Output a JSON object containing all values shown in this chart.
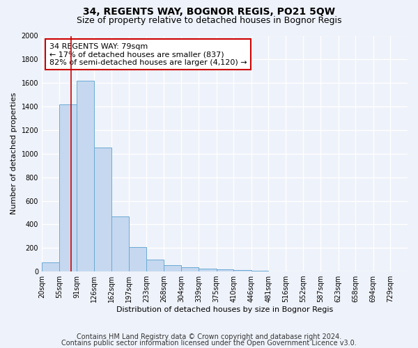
{
  "title1": "34, REGENTS WAY, BOGNOR REGIS, PO21 5QW",
  "title2": "Size of property relative to detached houses in Bognor Regis",
  "xlabel": "Distribution of detached houses by size in Bognor Regis",
  "ylabel": "Number of detached properties",
  "footnote1": "Contains HM Land Registry data © Crown copyright and database right 2024.",
  "footnote2": "Contains public sector information licensed under the Open Government Licence v3.0.",
  "bar_color": "#c5d8f0",
  "bar_edge_color": "#6aaad4",
  "annotation_line1": "34 REGENTS WAY: 79sqm",
  "annotation_line2": "← 17% of detached houses are smaller (837)",
  "annotation_line3": "82% of semi-detached houses are larger (4,120) →",
  "annotation_box_color": "#ffffff",
  "annotation_box_edge": "#cc0000",
  "red_line_color": "#cc0000",
  "property_size": 79,
  "bin_edges": [
    20,
    55,
    91,
    126,
    162,
    197,
    233,
    268,
    304,
    339,
    375,
    410,
    446,
    481,
    516,
    552,
    587,
    623,
    658,
    694,
    729
  ],
  "values": [
    75,
    1420,
    1620,
    1050,
    470,
    205,
    100,
    55,
    35,
    25,
    20,
    10,
    5,
    0,
    0,
    0,
    0,
    0,
    0,
    0,
    0
  ],
  "ylim": [
    0,
    2000
  ],
  "yticks": [
    0,
    200,
    400,
    600,
    800,
    1000,
    1200,
    1400,
    1600,
    1800,
    2000
  ],
  "categories": [
    "20sqm",
    "55sqm",
    "91sqm",
    "126sqm",
    "162sqm",
    "197sqm",
    "233sqm",
    "268sqm",
    "304sqm",
    "339sqm",
    "375sqm",
    "410sqm",
    "446sqm",
    "481sqm",
    "516sqm",
    "552sqm",
    "587sqm",
    "623sqm",
    "658sqm",
    "694sqm",
    "729sqm"
  ],
  "background_color": "#eef2fa",
  "grid_color": "#ffffff",
  "title1_fontsize": 10,
  "title2_fontsize": 9,
  "axis_fontsize": 8,
  "tick_fontsize": 7,
  "footnote_fontsize": 7
}
